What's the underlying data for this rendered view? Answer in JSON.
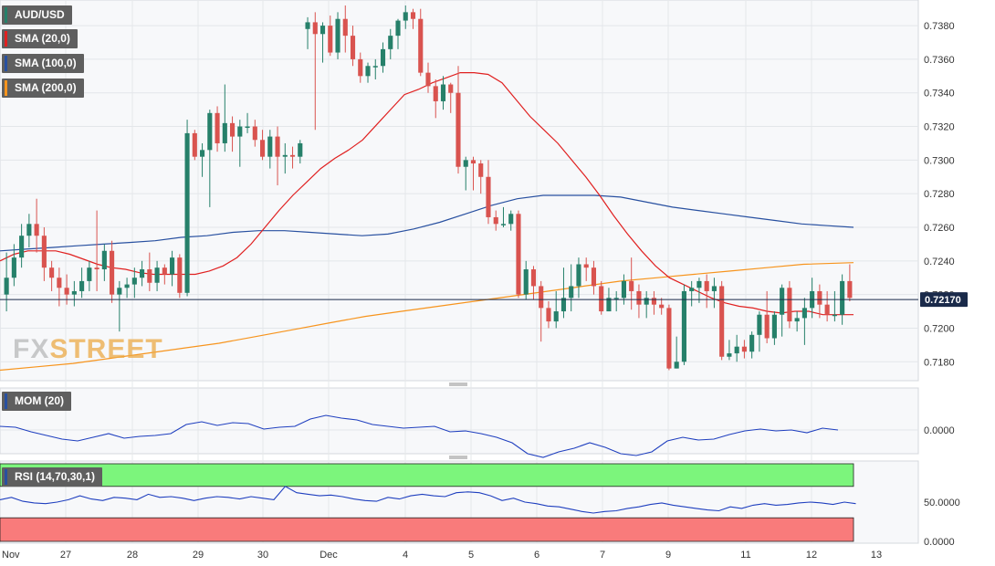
{
  "chart_data": [
    {
      "type": "candlestick",
      "symbol": "AUD/USD",
      "indicators": [
        {
          "name": "SMA (20,0)",
          "color": "#e02020"
        },
        {
          "name": "SMA (100,0)",
          "color": "#2850a0"
        },
        {
          "name": "SMA (200,0)",
          "color": "#f7941d"
        }
      ],
      "last_price": "0.72170",
      "y_ticks": [
        "0.7380",
        "0.7360",
        "0.7340",
        "0.7320",
        "0.7300",
        "0.7280",
        "0.7260",
        "0.7240",
        "0.7220",
        "0.7200",
        "0.7180"
      ],
      "ylim": [
        0.7172,
        0.7392
      ],
      "colors": {
        "up": "#26806a",
        "down": "#d9534f",
        "last_line": "#1a2a4a",
        "price_box": "#1a2a4a"
      },
      "candles": [
        [
          0.722,
          0.723,
          0.721,
          0.7245
        ],
        [
          0.723,
          0.7242,
          0.7225,
          0.725
        ],
        [
          0.7242,
          0.7255,
          0.7236,
          0.7262
        ],
        [
          0.7255,
          0.7262,
          0.7248,
          0.7268
        ],
        [
          0.7262,
          0.7255,
          0.7245,
          0.7277
        ],
        [
          0.7255,
          0.7236,
          0.7228,
          0.726
        ],
        [
          0.7236,
          0.723,
          0.7222,
          0.724
        ],
        [
          0.723,
          0.7224,
          0.7213,
          0.7236
        ],
        [
          0.7224,
          0.722,
          0.7214,
          0.7232
        ],
        [
          0.722,
          0.7222,
          0.7213,
          0.7228
        ],
        [
          0.7222,
          0.7228,
          0.7218,
          0.7236
        ],
        [
          0.7228,
          0.7236,
          0.7222,
          0.724
        ],
        [
          0.7236,
          0.7235,
          0.7222,
          0.727
        ],
        [
          0.7235,
          0.7246,
          0.7228,
          0.725
        ],
        [
          0.7246,
          0.722,
          0.7215,
          0.7252
        ],
        [
          0.722,
          0.7224,
          0.7198,
          0.7228
        ],
        [
          0.7224,
          0.7226,
          0.7218,
          0.723
        ],
        [
          0.7226,
          0.723,
          0.7218,
          0.7236
        ],
        [
          0.723,
          0.7235,
          0.7225,
          0.724
        ],
        [
          0.7235,
          0.7227,
          0.7222,
          0.7245
        ],
        [
          0.7227,
          0.7236,
          0.7222,
          0.724
        ],
        [
          0.7236,
          0.7232,
          0.7226,
          0.7238
        ],
        [
          0.7232,
          0.7242,
          0.7225,
          0.7246
        ],
        [
          0.7242,
          0.7221,
          0.7218,
          0.7244
        ],
        [
          0.7221,
          0.7316,
          0.7219,
          0.7324
        ],
        [
          0.7316,
          0.7302,
          0.73,
          0.7318
        ],
        [
          0.7302,
          0.7306,
          0.729,
          0.731
        ],
        [
          0.7306,
          0.7328,
          0.7272,
          0.733
        ],
        [
          0.7328,
          0.731,
          0.7305,
          0.7332
        ],
        [
          0.731,
          0.7322,
          0.7305,
          0.7345
        ],
        [
          0.7322,
          0.7314,
          0.7305,
          0.7326
        ],
        [
          0.7314,
          0.732,
          0.7296,
          0.7324
        ],
        [
          0.732,
          0.732,
          0.7316,
          0.7328
        ],
        [
          0.732,
          0.7312,
          0.7308,
          0.7324
        ],
        [
          0.7312,
          0.7302,
          0.73,
          0.7318
        ],
        [
          0.7302,
          0.7314,
          0.7295,
          0.7318
        ],
        [
          0.7314,
          0.7302,
          0.7285,
          0.732
        ],
        [
          0.7302,
          0.7303,
          0.7292,
          0.731
        ],
        [
          0.7303,
          0.7302,
          0.7295,
          0.7308
        ],
        [
          0.7302,
          0.731,
          0.7298,
          0.7312
        ],
        [
          0.7378,
          0.7382,
          0.7366,
          0.7385
        ],
        [
          0.7382,
          0.7375,
          0.7318,
          0.7388
        ],
        [
          0.7375,
          0.738,
          0.7358,
          0.7382
        ],
        [
          0.738,
          0.7364,
          0.7362,
          0.7386
        ],
        [
          0.7364,
          0.7384,
          0.736,
          0.7388
        ],
        [
          0.7384,
          0.7374,
          0.7364,
          0.7392
        ],
        [
          0.7374,
          0.736,
          0.7356,
          0.738
        ],
        [
          0.736,
          0.735,
          0.7346,
          0.7364
        ],
        [
          0.735,
          0.7356,
          0.7346,
          0.7358
        ],
        [
          0.7356,
          0.7356,
          0.7348,
          0.736
        ],
        [
          0.7356,
          0.7366,
          0.7352,
          0.737
        ],
        [
          0.7366,
          0.7374,
          0.736,
          0.7378
        ],
        [
          0.7374,
          0.7383,
          0.7366,
          0.7384
        ],
        [
          0.7383,
          0.7388,
          0.7378,
          0.7392
        ],
        [
          0.7388,
          0.7384,
          0.7378,
          0.739
        ],
        [
          0.7384,
          0.7352,
          0.735,
          0.739
        ],
        [
          0.7352,
          0.7344,
          0.734,
          0.7358
        ],
        [
          0.7344,
          0.7335,
          0.7325,
          0.7348
        ],
        [
          0.7335,
          0.7345,
          0.733,
          0.735
        ],
        [
          0.7345,
          0.734,
          0.7328,
          0.7346
        ],
        [
          0.734,
          0.7296,
          0.7292,
          0.7356
        ],
        [
          0.7296,
          0.73,
          0.7282,
          0.7302
        ],
        [
          0.73,
          0.7298,
          0.7282,
          0.7302
        ],
        [
          0.7298,
          0.729,
          0.728,
          0.73
        ],
        [
          0.729,
          0.7266,
          0.7262,
          0.73
        ],
        [
          0.7266,
          0.7262,
          0.7258,
          0.727
        ],
        [
          0.7262,
          0.7262,
          0.726,
          0.7272
        ],
        [
          0.7262,
          0.7268,
          0.7258,
          0.727
        ],
        [
          0.7268,
          0.722,
          0.7218,
          0.727
        ],
        [
          0.722,
          0.7235,
          0.7217,
          0.724
        ],
        [
          0.7235,
          0.7225,
          0.7217,
          0.7237
        ],
        [
          0.7225,
          0.7212,
          0.7192,
          0.7228
        ],
        [
          0.7212,
          0.7204,
          0.72,
          0.7216
        ],
        [
          0.7204,
          0.721,
          0.72,
          0.7222
        ],
        [
          0.721,
          0.7218,
          0.7206,
          0.7236
        ],
        [
          0.7218,
          0.7225,
          0.721,
          0.7238
        ],
        [
          0.7225,
          0.7238,
          0.7218,
          0.7242
        ],
        [
          0.7238,
          0.7236,
          0.7228,
          0.7242
        ],
        [
          0.7236,
          0.7225,
          0.722,
          0.724
        ],
        [
          0.7225,
          0.721,
          0.7208,
          0.7228
        ],
        [
          0.721,
          0.7218,
          0.721,
          0.7224
        ],
        [
          0.7218,
          0.7218,
          0.721,
          0.7222
        ],
        [
          0.7218,
          0.7228,
          0.7214,
          0.7232
        ],
        [
          0.7228,
          0.7222,
          0.7211,
          0.7242
        ],
        [
          0.7222,
          0.7214,
          0.7206,
          0.7226
        ],
        [
          0.7214,
          0.7218,
          0.7206,
          0.7222
        ],
        [
          0.7218,
          0.7214,
          0.7208,
          0.7222
        ],
        [
          0.7214,
          0.7212,
          0.7208,
          0.7218
        ],
        [
          0.7212,
          0.7176,
          0.7175,
          0.7214
        ],
        [
          0.7176,
          0.718,
          0.7176,
          0.7195
        ],
        [
          0.718,
          0.7222,
          0.7178,
          0.7226
        ],
        [
          0.7222,
          0.7224,
          0.7213,
          0.7228
        ],
        [
          0.7224,
          0.7228,
          0.7215,
          0.723
        ],
        [
          0.7228,
          0.7222,
          0.7212,
          0.7232
        ],
        [
          0.7222,
          0.7225,
          0.7212,
          0.723
        ],
        [
          0.7225,
          0.7183,
          0.7181,
          0.7228
        ],
        [
          0.7183,
          0.7185,
          0.7181,
          0.7193
        ],
        [
          0.7185,
          0.7189,
          0.718,
          0.7196
        ],
        [
          0.7189,
          0.7186,
          0.7182,
          0.7193
        ],
        [
          0.7186,
          0.7196,
          0.7182,
          0.7198
        ],
        [
          0.7196,
          0.7208,
          0.7186,
          0.721
        ],
        [
          0.7208,
          0.7194,
          0.7191,
          0.7222
        ],
        [
          0.7194,
          0.7208,
          0.719,
          0.721
        ],
        [
          0.7208,
          0.7224,
          0.7195,
          0.7226
        ],
        [
          0.7224,
          0.7204,
          0.72,
          0.7228
        ],
        [
          0.7204,
          0.7206,
          0.7198,
          0.721
        ],
        [
          0.7206,
          0.7212,
          0.719,
          0.7218
        ],
        [
          0.7212,
          0.7222,
          0.7206,
          0.723
        ],
        [
          0.7222,
          0.7214,
          0.7206,
          0.7226
        ],
        [
          0.7214,
          0.7208,
          0.7204,
          0.7222
        ],
        [
          0.7208,
          0.7208,
          0.7204,
          0.7222
        ],
        [
          0.7208,
          0.7228,
          0.7202,
          0.7232
        ],
        [
          0.7228,
          0.7218,
          0.7216,
          0.7238
        ]
      ],
      "sma20": [
        0.724,
        0.7244,
        0.7246,
        0.7246,
        0.7246,
        0.7244,
        0.7241,
        0.7238,
        0.7236,
        0.7235,
        0.7233,
        0.7232,
        0.7232,
        0.7232,
        0.7232,
        0.7234,
        0.7237,
        0.7242,
        0.725,
        0.726,
        0.727,
        0.7279,
        0.7287,
        0.7295,
        0.7301,
        0.7306,
        0.7312,
        0.7321,
        0.733,
        0.7339,
        0.7342,
        0.7346,
        0.7349,
        0.7352,
        0.7352,
        0.7351,
        0.7346,
        0.7336,
        0.7326,
        0.7318,
        0.731,
        0.73,
        0.729,
        0.7279,
        0.7267,
        0.7256,
        0.7246,
        0.7237,
        0.723,
        0.7226,
        0.7222,
        0.7218,
        0.7215,
        0.7213,
        0.7212,
        0.721,
        0.7209,
        0.721,
        0.721,
        0.7208,
        0.7208,
        0.7208
      ],
      "sma20_x": [
        0,
        10,
        20,
        30,
        40,
        50,
        60,
        70,
        80,
        90,
        100,
        110,
        120,
        130,
        140,
        150,
        160,
        170,
        180,
        190,
        200,
        210,
        220,
        230,
        240,
        250,
        260,
        270,
        280,
        290,
        300,
        310,
        320,
        330,
        340,
        350,
        360,
        370,
        380,
        390,
        400,
        410,
        420,
        430,
        440,
        450,
        460,
        470,
        480,
        490,
        500,
        510,
        520,
        530,
        540,
        550,
        560,
        570,
        580,
        590,
        600,
        612
      ],
      "sma100": [
        0.7246,
        0.7247,
        0.7248,
        0.7249,
        0.725,
        0.7251,
        0.7252,
        0.7254,
        0.7255,
        0.7257,
        0.7258,
        0.7258,
        0.7257,
        0.7256,
        0.7255,
        0.7256,
        0.7259,
        0.7263,
        0.7268,
        0.7273,
        0.7277,
        0.7279,
        0.7279,
        0.7279,
        0.7278,
        0.7275,
        0.7272,
        0.727,
        0.7268,
        0.7266,
        0.7264,
        0.7262,
        0.7261,
        0.726
      ],
      "sma100_x": [
        0,
        20,
        40,
        60,
        80,
        100,
        120,
        140,
        160,
        180,
        200,
        220,
        240,
        260,
        280,
        300,
        320,
        340,
        360,
        380,
        400,
        420,
        440,
        460,
        480,
        500,
        520,
        540,
        560,
        580,
        600,
        620,
        640,
        660
      ],
      "sma200": [
        0.7175,
        0.7177,
        0.7179,
        0.7182,
        0.7185,
        0.7188,
        0.7191,
        0.7195,
        0.7199,
        0.7203,
        0.7207,
        0.721,
        0.7213,
        0.7216,
        0.7219,
        0.7222,
        0.7225,
        0.7228,
        0.723,
        0.7232,
        0.7234,
        0.7236,
        0.7238,
        0.7239
      ],
      "sma200_x": [
        0,
        40,
        80,
        120,
        160,
        200,
        240,
        280,
        320,
        360,
        400,
        440,
        480,
        520,
        560,
        600,
        640,
        680,
        720,
        760,
        800,
        840,
        880,
        935
      ]
    },
    {
      "type": "line",
      "name": "MOM (20)",
      "y_ticks": [
        "0.0000"
      ],
      "values": [
        0.4,
        0.3,
        -0.2,
        -0.6,
        -1.0,
        -1.2,
        -0.8,
        -0.4,
        -0.9,
        -0.7,
        -0.6,
        -0.4,
        0.6,
        0.9,
        0.5,
        0.8,
        0.7,
        0.1,
        0.3,
        0.4,
        1.2,
        1.6,
        1.3,
        1.1,
        0.6,
        0.4,
        0.2,
        0.3,
        0.4,
        -0.2,
        -0.1,
        -0.4,
        -0.8,
        -1.4,
        -2.6,
        -3.0,
        -2.4,
        -2.0,
        -1.4,
        -1.9,
        -2.6,
        -2.8,
        -2.4,
        -1.2,
        -0.8,
        -1.1,
        -1.0,
        -0.5,
        -0.1,
        0.1,
        -0.1,
        0.0,
        -0.3,
        0.2,
        0.0
      ],
      "x_step": 17.0
    },
    {
      "type": "line",
      "name": "RSI (14,70,30,1)",
      "y_ticks": [
        "50.0000",
        "0.0000"
      ],
      "overbought": 70,
      "oversold": 30,
      "values": [
        53,
        56,
        51,
        49,
        48,
        50,
        53,
        58,
        54,
        52,
        56,
        55,
        53,
        60,
        56,
        57,
        55,
        52,
        55,
        57,
        56,
        54,
        57,
        55,
        53,
        70,
        62,
        60,
        58,
        59,
        57,
        54,
        52,
        51,
        56,
        54,
        58,
        60,
        58,
        57,
        62,
        63,
        62,
        58,
        52,
        55,
        50,
        48,
        45,
        44,
        41,
        38,
        36,
        38,
        39,
        42,
        44,
        47,
        49,
        46,
        44,
        42,
        40,
        39,
        44,
        42,
        46,
        48,
        46,
        47,
        49,
        50,
        49,
        47,
        50,
        48
      ],
      "x_step": 12.5
    }
  ],
  "x_labels": [
    "Nov",
    "27",
    "28",
    "29",
    "30",
    "Dec",
    "4",
    "5",
    "6",
    "7",
    "9",
    "11",
    "12",
    "13"
  ],
  "watermark": {
    "part1": "FX",
    "part2": "STREET"
  }
}
